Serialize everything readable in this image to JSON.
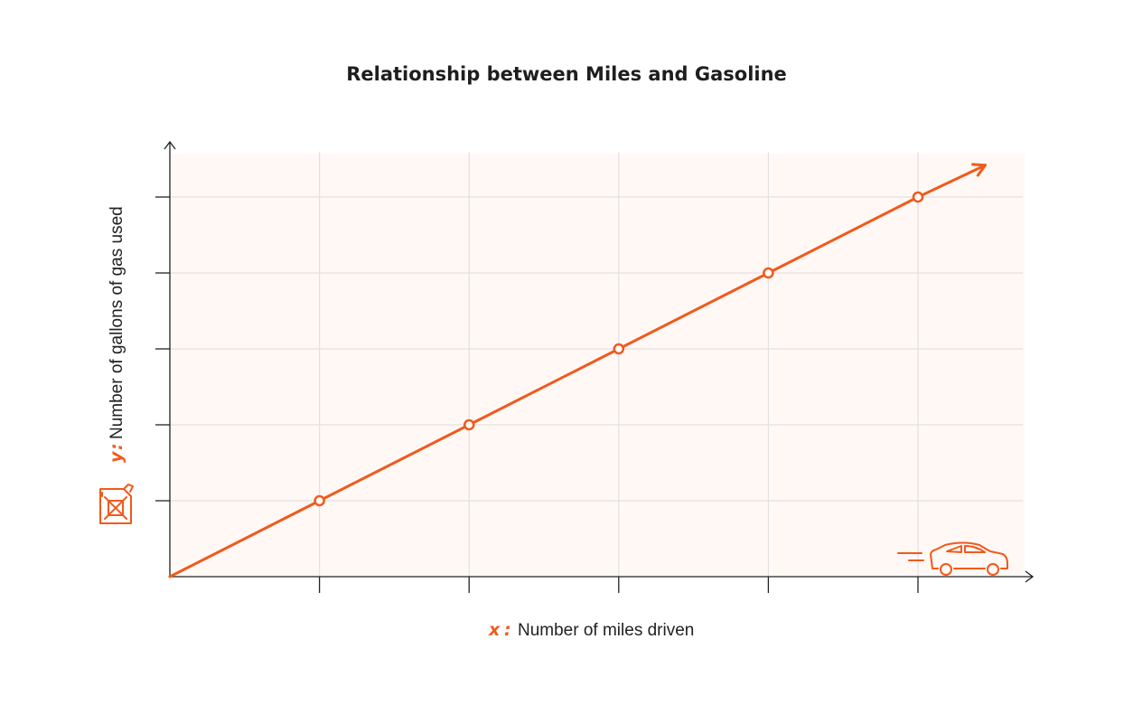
{
  "colors": {
    "accent": "#f05a1c",
    "plot_background": "#fff8f5",
    "grid": "#e2e2e2",
    "axis": "#222222"
  },
  "icons": {
    "y_axis": "gas-can-icon",
    "x_axis_end": "car-icon"
  },
  "chart_data": {
    "type": "line",
    "title": "Relationship between Miles and Gasoline",
    "xlabel": {
      "letter": "x",
      "separator": ":",
      "text": "Number of miles driven"
    },
    "ylabel": {
      "letter": "y",
      "separator": ":",
      "text": "Number of gallons of gas used"
    },
    "tick_labels_shown": false,
    "grid": true,
    "xlim": [
      0,
      5.7
    ],
    "ylim": [
      0,
      5.6
    ],
    "x_ticks": [
      1,
      2,
      3,
      4,
      5
    ],
    "y_ticks": [
      1,
      2,
      3,
      4,
      5
    ],
    "series": [
      {
        "x": [
          0,
          1,
          2,
          3,
          4,
          5
        ],
        "y": [
          0,
          1,
          2,
          3,
          4,
          5
        ],
        "markers": [
          1,
          2,
          3,
          4,
          5
        ],
        "extends_with_arrow_to": [
          5.45,
          5.42
        ]
      }
    ]
  }
}
